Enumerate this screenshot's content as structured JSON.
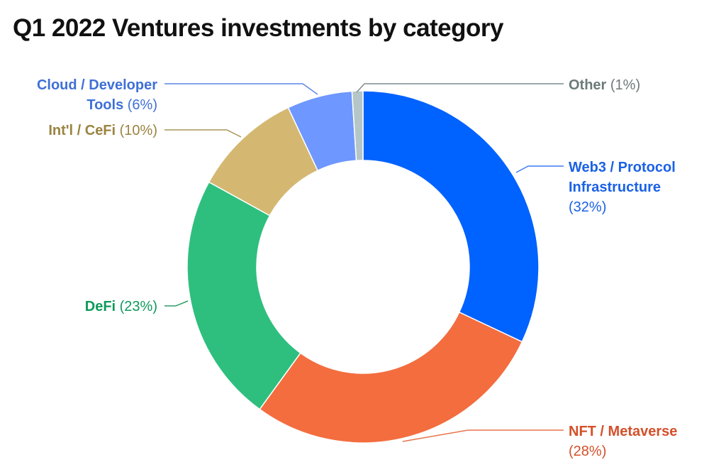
{
  "chart_data": {
    "type": "pie",
    "variant": "donut",
    "title": "Q1 2022 Ventures investments by category",
    "series": [
      {
        "name": "Web3 / Protocol Infrastructure",
        "label_lines": [
          "Web3 / Protocol",
          "Infrastructure"
        ],
        "value": 32,
        "value_label": "(32%)",
        "color": "#0062ff"
      },
      {
        "name": "NFT / Metaverse",
        "label_lines": [
          "NFT / Metaverse"
        ],
        "value": 28,
        "value_label": "(28%)",
        "color": "#f36d3f"
      },
      {
        "name": "DeFi",
        "label_lines": [
          "DeFi"
        ],
        "value": 23,
        "value_label": "(23%)",
        "color": "#2ebf7f"
      },
      {
        "name": "Int'l / CeFi",
        "label_lines": [
          "Int'l / CeFi"
        ],
        "value": 10,
        "value_label": "(10%)",
        "color": "#d4b872"
      },
      {
        "name": "Cloud / Developer Tools",
        "label_lines": [
          "Cloud / Developer",
          "Tools"
        ],
        "value": 6,
        "value_label": "(6%)",
        "color": "#6e97ff"
      },
      {
        "name": "Other",
        "label_lines": [
          "Other"
        ],
        "value": 1,
        "value_label": "(1%)",
        "color": "#b4c6c8"
      }
    ],
    "label_colors": {
      "Web3 / Protocol Infrastructure": "#1a61e6",
      "NFT / Metaverse": "#d4502a",
      "DeFi": "#0f9a5a",
      "Int'l / CeFi": "#9a8440",
      "Cloud / Developer Tools": "#3f70d6",
      "Other": "#6c7a7a"
    },
    "leader_colors": {
      "Web3 / Protocol Infrastructure": "#3f7df0",
      "NFT / Metaverse": "#e8734b",
      "DeFi": "#2e9e6a",
      "Int'l / CeFi": "#a8955a",
      "Cloud / Developer Tools": "#5c86e6",
      "Other": "#7f8c8c"
    }
  }
}
